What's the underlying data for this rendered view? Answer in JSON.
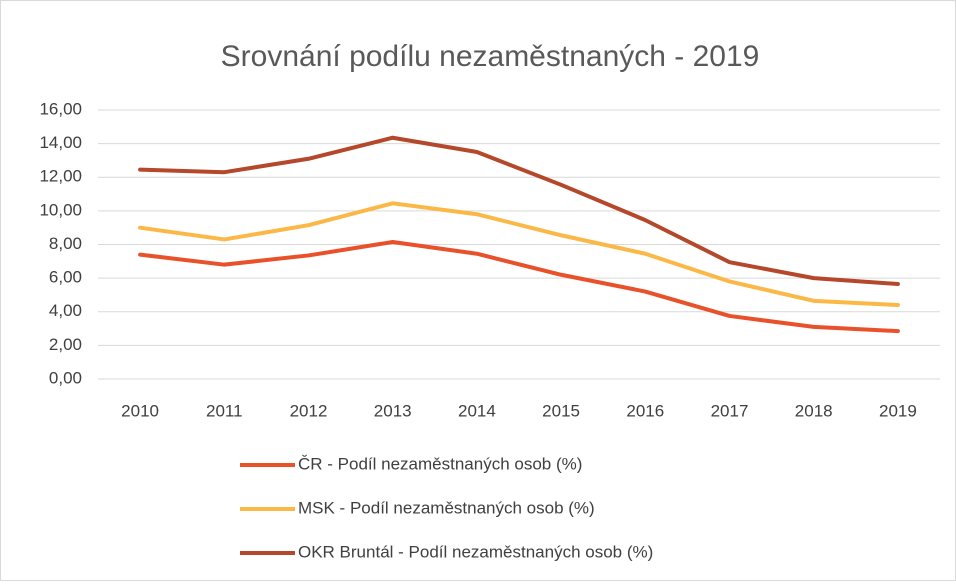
{
  "chart_data": {
    "type": "line",
    "title": "Srovnání podílu nezaměstnaných - 2019",
    "categories": [
      "2010",
      "2011",
      "2012",
      "2013",
      "2014",
      "2015",
      "2016",
      "2017",
      "2018",
      "2019"
    ],
    "series": [
      {
        "name": "ČR - Podíl nezaměstnaných osob (%)",
        "color": "#e8512a",
        "values": [
          7.4,
          6.8,
          7.35,
          8.15,
          7.45,
          6.2,
          5.2,
          3.75,
          3.1,
          2.85
        ]
      },
      {
        "name": "MSK - Podíl nezaměstnaných osob (%)",
        "color": "#fbb847",
        "values": [
          9.0,
          8.3,
          9.15,
          10.45,
          9.8,
          8.55,
          7.45,
          5.8,
          4.65,
          4.4
        ]
      },
      {
        "name": "OKR Bruntál - Podíl nezaměstnaných osob (%)",
        "color": "#b5482a",
        "values": [
          12.45,
          12.3,
          13.1,
          14.35,
          13.5,
          11.55,
          9.45,
          6.95,
          6.0,
          5.65
        ]
      }
    ],
    "ylim": [
      0,
      16
    ],
    "yticks": [
      {
        "value": 0,
        "label": "0,00"
      },
      {
        "value": 2,
        "label": "2,00"
      },
      {
        "value": 4,
        "label": "4,00"
      },
      {
        "value": 6,
        "label": "6,00"
      },
      {
        "value": 8,
        "label": "8,00"
      },
      {
        "value": 10,
        "label": "10,00"
      },
      {
        "value": 12,
        "label": "12,00"
      },
      {
        "value": 14,
        "label": "14,00"
      },
      {
        "value": 16,
        "label": "16,00"
      }
    ],
    "grid": true,
    "legend": "bottom"
  }
}
